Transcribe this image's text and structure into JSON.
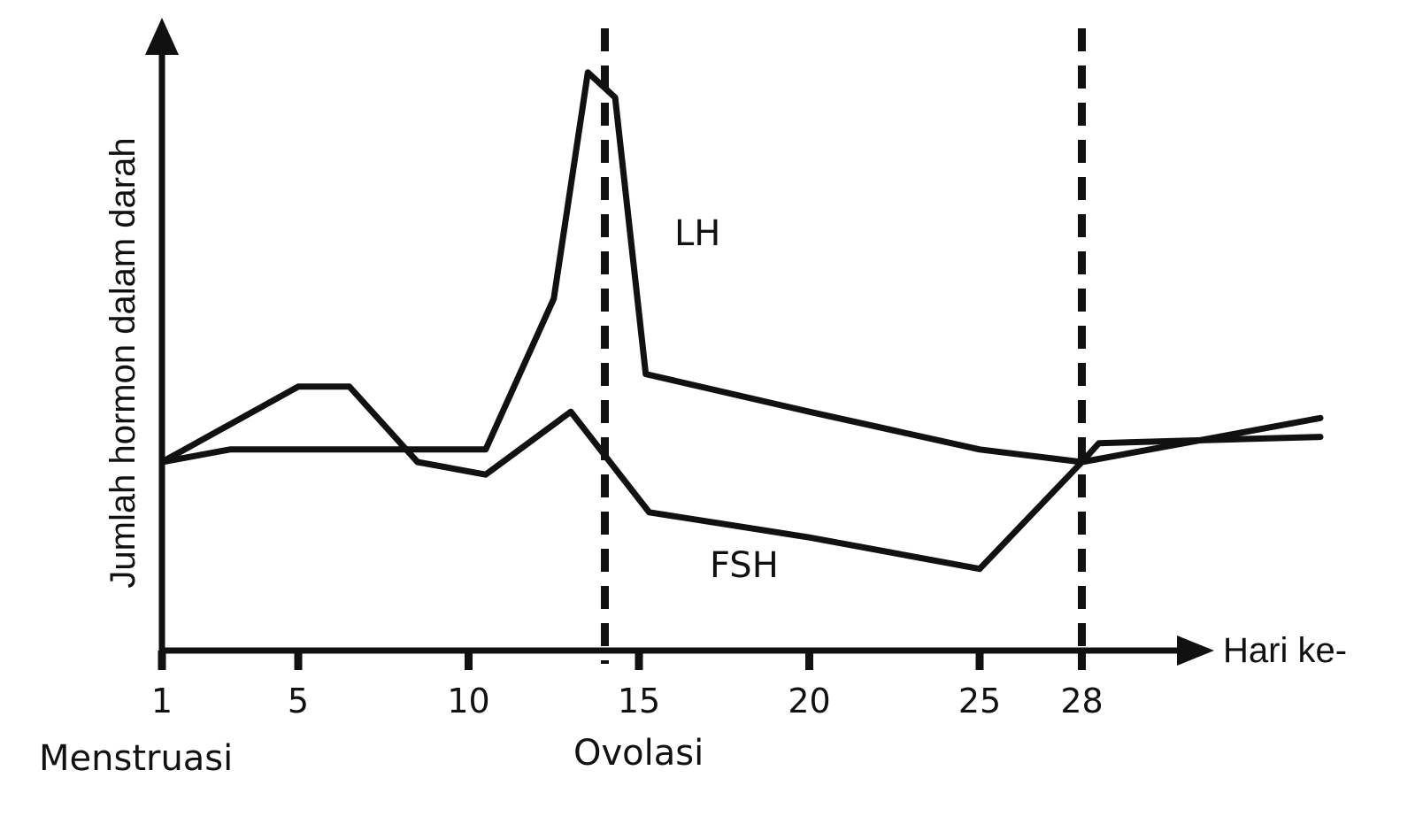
{
  "chart_data": {
    "type": "line",
    "title": "",
    "xlabel": "Hari ke-",
    "ylabel": "Jumlah hormon dalam darah",
    "xlim": [
      1,
      35
    ],
    "ylim": [
      0,
      10
    ],
    "x_ticks": [
      1,
      5,
      10,
      15,
      20,
      25,
      28
    ],
    "x_tick_labels": [
      "1",
      "5",
      "10",
      "15",
      "20",
      "25",
      "28"
    ],
    "grid": false,
    "series": [
      {
        "name": "LH",
        "x": [
          1,
          3,
          5,
          8,
          10.5,
          12.5,
          13.5,
          14.3,
          15.2,
          20,
          25,
          28,
          35
        ],
        "y": [
          3.0,
          3.2,
          3.2,
          3.2,
          3.2,
          5.6,
          9.2,
          8.8,
          4.4,
          3.8,
          3.2,
          3.0,
          3.7
        ]
      },
      {
        "name": "FSH",
        "x": [
          1,
          3,
          5,
          6.5,
          8.5,
          10.5,
          13,
          15.3,
          20,
          25,
          28,
          28.5,
          35
        ],
        "y": [
          3.0,
          3.6,
          4.2,
          4.2,
          3.0,
          2.8,
          3.8,
          2.2,
          1.8,
          1.3,
          3.0,
          3.3,
          3.4
        ]
      }
    ],
    "reference_lines": [
      {
        "x": 14,
        "style": "dashed"
      },
      {
        "x": 28,
        "style": "dashed"
      }
    ],
    "annotations": [
      {
        "text": "Menstruasi",
        "x": 1
      },
      {
        "text": "Ovolasi",
        "x": 14
      }
    ]
  },
  "colors": {
    "line": "#111111",
    "background": "#ffffff"
  }
}
